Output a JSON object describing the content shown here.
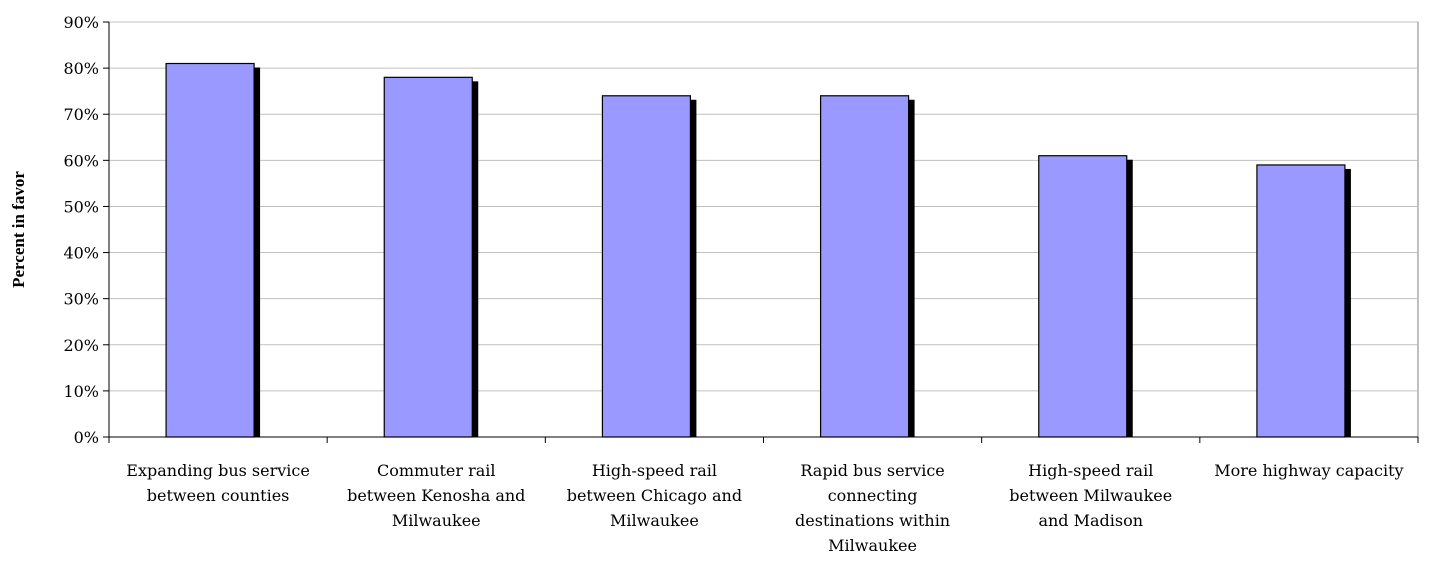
{
  "chart_data": {
    "type": "bar",
    "title": "",
    "xlabel": "",
    "ylabel": "Percent in favor",
    "ylim": [
      0,
      90
    ],
    "y_unit": "%",
    "y_ticks": [
      0,
      10,
      20,
      30,
      40,
      50,
      60,
      70,
      80,
      90
    ],
    "grid": true,
    "categories": [
      [
        "Expanding bus service",
        "between counties"
      ],
      [
        "Commuter rail",
        "between Kenosha and",
        "Milwaukee"
      ],
      [
        "High-speed rail",
        "between Chicago and",
        "Milwaukee"
      ],
      [
        "Rapid bus service",
        "connecting",
        "destinations within",
        "Milwaukee"
      ],
      [
        "High-speed rail",
        "between Milwaukee",
        "and Madison"
      ],
      [
        "More highway capacity"
      ]
    ],
    "values": [
      81,
      78,
      74,
      74,
      61,
      59
    ],
    "colors": {
      "bar_fill": "#9999ff",
      "bar_shadow": "#000000",
      "gridline": "#c0c0c0",
      "axis": "#808080"
    }
  }
}
